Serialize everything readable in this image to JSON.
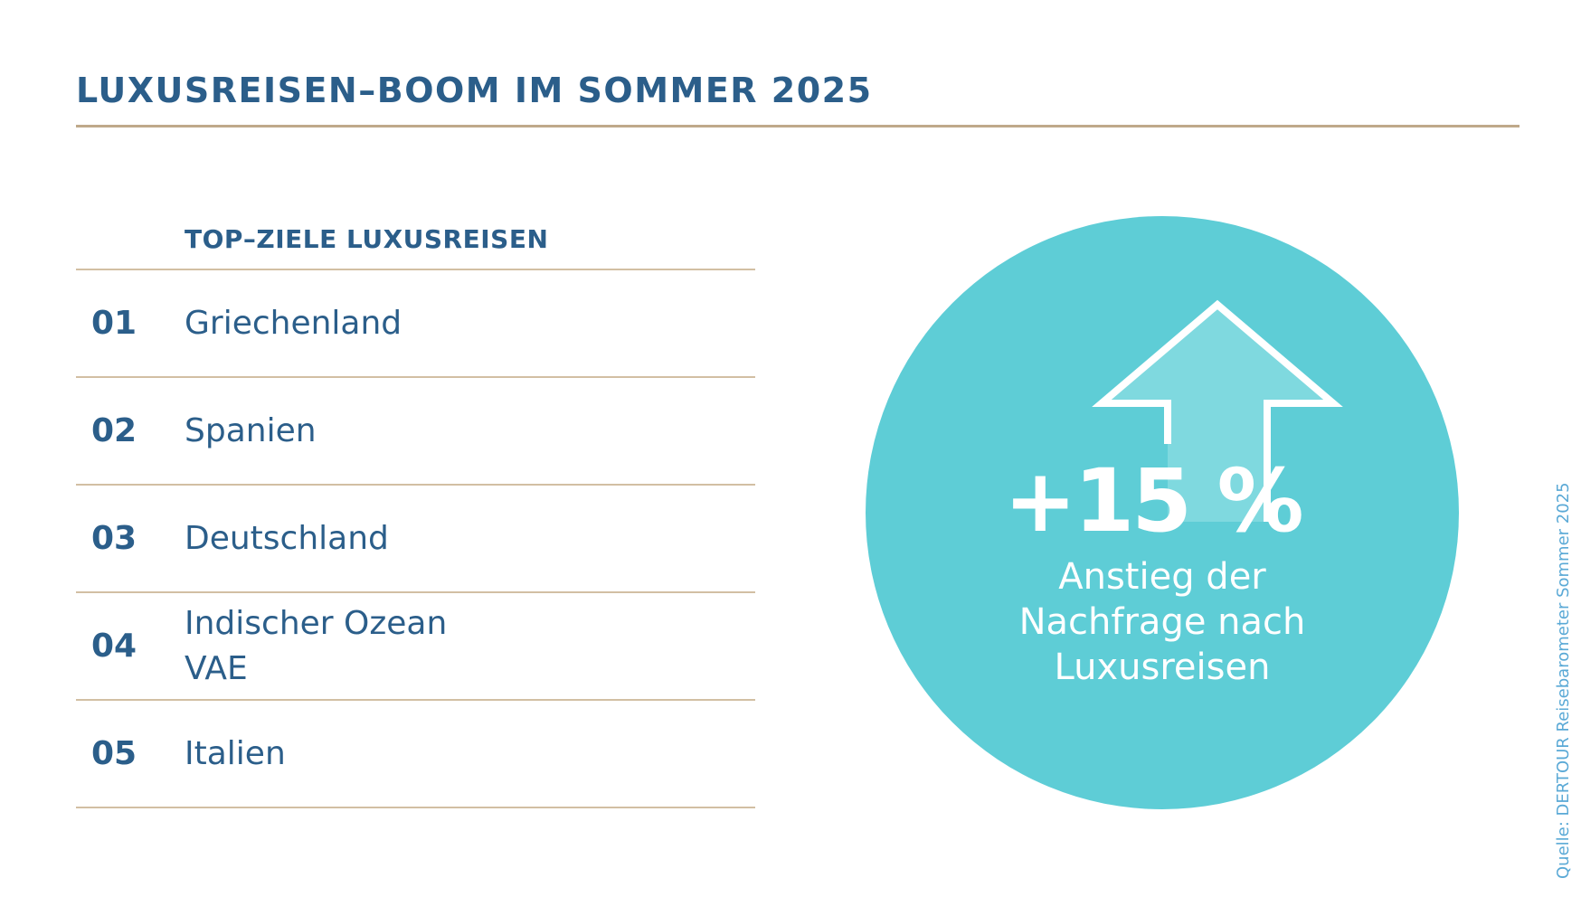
{
  "title": "LUXUSREISEN–BOOM IM SOMMER 2025",
  "list_header": "TOP–ZIELE LUXUSREISEN",
  "destinations": [
    {
      "rank": "01",
      "lines": [
        "Griechenland"
      ]
    },
    {
      "rank": "02",
      "lines": [
        "Spanien"
      ]
    },
    {
      "rank": "03",
      "lines": [
        "Deutschland"
      ]
    },
    {
      "rank": "04",
      "lines": [
        "Indischer Ozean",
        "VAE"
      ]
    },
    {
      "rank": "05",
      "lines": [
        "Italien"
      ]
    }
  ],
  "highlight": {
    "value": "+15 %",
    "caption_lines": [
      "Anstieg der",
      "Nachfrage nach",
      "Luxusreisen"
    ],
    "icon": "up-arrow-icon"
  },
  "source": "Quelle: DERTOUR Reisebarometer Sommer 2025",
  "colors": {
    "primary": "#2b5e8a",
    "rule": "#d2bfa3",
    "circle": "#5ecdd6",
    "arrow_fill": "#7fd9df",
    "source": "#5aa9d6"
  }
}
